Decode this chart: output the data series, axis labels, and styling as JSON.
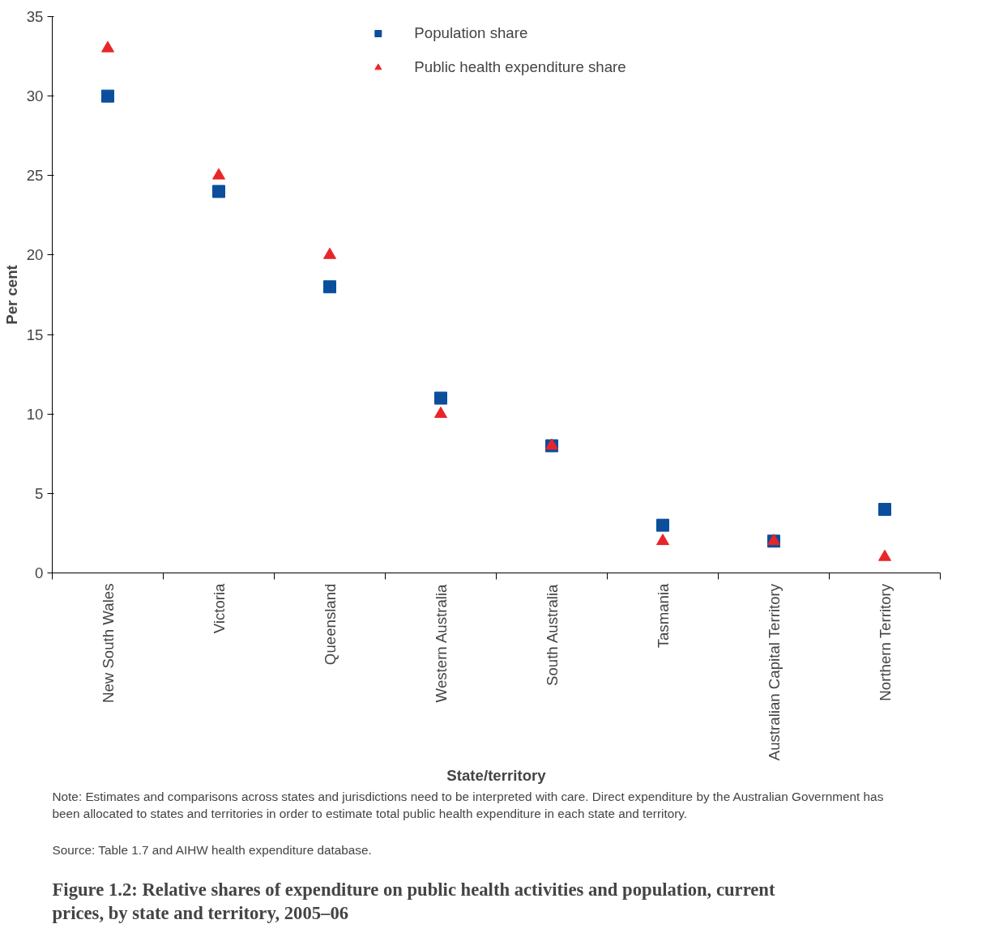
{
  "chart_data": {
    "type": "scatter",
    "title": "Figure 1.2: Relative shares of expenditure on public health activities and population, current prices, by state and territory, 2005–06",
    "xlabel": "State/territory",
    "ylabel": "Per cent",
    "categories": [
      "New South Wales",
      "Victoria",
      "Queensland",
      "Western Australia",
      "South Australia",
      "Tasmania",
      "Australian Capital Territory",
      "Northern Territory"
    ],
    "series": [
      {
        "name": "Population share",
        "color": "#0b4f9c",
        "marker": "square",
        "values": [
          30,
          24,
          18,
          11,
          8,
          3,
          2,
          4
        ]
      },
      {
        "name": "Public health expenditure share",
        "color": "#e8262a",
        "marker": "triangle",
        "values": [
          33,
          25,
          20,
          10,
          8,
          2,
          2,
          1
        ]
      }
    ],
    "ylim": [
      0,
      35
    ],
    "yticks": [
      0,
      5,
      10,
      15,
      20,
      25,
      30,
      35
    ],
    "grid": false,
    "legend": "top",
    "annotations": [
      "Note: Estimates and comparisons across states and jurisdictions need to be interpreted with care. Direct expenditure by the Australian Government has been allocated to states and territories in order to estimate total public health expenditure in each state and territory.",
      "Source: Table 1.7 and AIHW health expenditure database."
    ]
  }
}
